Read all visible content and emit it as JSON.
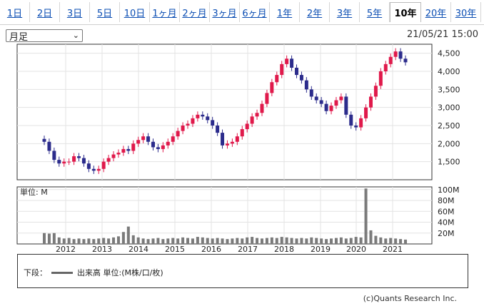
{
  "tabs": [
    {
      "label": "1日",
      "active": false
    },
    {
      "label": "2日",
      "active": false
    },
    {
      "label": "3日",
      "active": false
    },
    {
      "label": "5日",
      "active": false
    },
    {
      "label": "10日",
      "active": false
    },
    {
      "label": "1ヶ月",
      "active": false
    },
    {
      "label": "2ヶ月",
      "active": false
    },
    {
      "label": "3ヶ月",
      "active": false
    },
    {
      "label": "6ヶ月",
      "active": false
    },
    {
      "label": "1年",
      "active": false
    },
    {
      "label": "2年",
      "active": false
    },
    {
      "label": "3年",
      "active": false
    },
    {
      "label": "5年",
      "active": false
    },
    {
      "label": "10年",
      "active": true
    },
    {
      "label": "20年",
      "active": false
    },
    {
      "label": "30年",
      "active": false
    }
  ],
  "period_select": {
    "value": "月足"
  },
  "timestamp": "21/05/21 15:00",
  "chart_data": [
    {
      "type": "candlestick",
      "title": "",
      "ylim": [
        1000,
        4750
      ],
      "yticks": [
        "4,500",
        "4,000",
        "3,500",
        "3,000",
        "2,500",
        "2,000",
        "1,500"
      ],
      "ytick_values": [
        4500,
        4000,
        3500,
        3000,
        2500,
        2000,
        1500
      ],
      "colors": {
        "up": "#e0194b",
        "down": "#2c2c8c"
      },
      "x": [
        "2012",
        "2013",
        "2014",
        "2015",
        "2016",
        "2017",
        "2018",
        "2019",
        "2020",
        "2021"
      ],
      "close_series_approx": [
        2050,
        1800,
        1550,
        1450,
        1500,
        1500,
        1650,
        1600,
        1450,
        1300,
        1250,
        1300,
        1500,
        1600,
        1700,
        1750,
        1850,
        1800,
        2000,
        2100,
        2200,
        2050,
        1900,
        1850,
        1950,
        2050,
        2200,
        2350,
        2500,
        2550,
        2700,
        2800,
        2750,
        2650,
        2500,
        2300,
        1950,
        2000,
        2050,
        2200,
        2400,
        2550,
        2750,
        2850,
        3100,
        3400,
        3700,
        3900,
        4200,
        4350,
        4100,
        3900,
        3750,
        3500,
        3300,
        3200,
        3100,
        2900,
        3050,
        3200,
        3300,
        2800,
        2500,
        2450,
        2700,
        3000,
        3300,
        3600,
        4000,
        4200,
        4400,
        4550,
        4350,
        4250
      ]
    },
    {
      "type": "bar",
      "title": "単位: M",
      "ylim": [
        0,
        105
      ],
      "yticks": [
        "100M",
        "80M",
        "60M",
        "40M",
        "20M"
      ],
      "ytick_values": [
        100,
        80,
        60,
        40,
        20
      ],
      "volume_series_approx": [
        20,
        19,
        20,
        12,
        10,
        11,
        9,
        10,
        9,
        10,
        9,
        10,
        11,
        10,
        12,
        14,
        22,
        32,
        16,
        12,
        10,
        9,
        10,
        11,
        9,
        10,
        11,
        10,
        12,
        11,
        10,
        13,
        12,
        11,
        10,
        11,
        10,
        9,
        10,
        11,
        10,
        12,
        13,
        11,
        10,
        11,
        12,
        11,
        13,
        12,
        11,
        10,
        11,
        10,
        12,
        11,
        10,
        9,
        10,
        11,
        12,
        10,
        11,
        13,
        12,
        102,
        25,
        15,
        12,
        10,
        11,
        10,
        9,
        8
      ]
    }
  ],
  "legend": {
    "prefix": "下段：",
    "series_label": "出来高 単位:(M株/口/枚)"
  },
  "copyright": "(c)Quants Research Inc."
}
